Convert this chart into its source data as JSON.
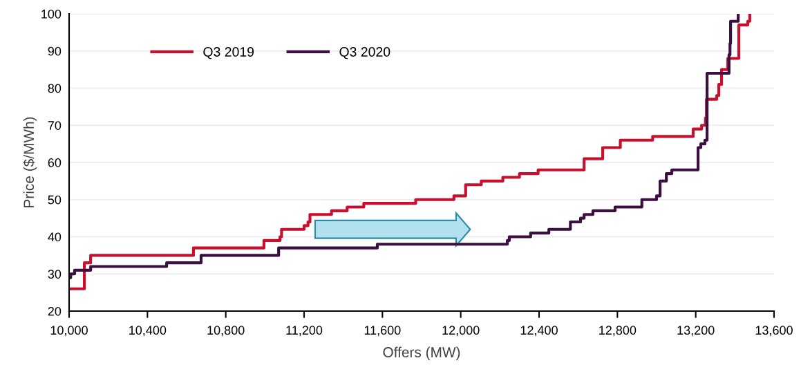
{
  "chart_data": {
    "type": "step",
    "xlabel": "Offers (MW)",
    "ylabel": "Price ($/MWh)",
    "xlim": [
      10000,
      13600
    ],
    "ylim": [
      20,
      100
    ],
    "xticks": [
      {
        "value": 10000,
        "label": "10,000"
      },
      {
        "value": 10400,
        "label": "10,400"
      },
      {
        "value": 10800,
        "label": "10,800"
      },
      {
        "value": 11200,
        "label": "11,200"
      },
      {
        "value": 11600,
        "label": "11,600"
      },
      {
        "value": 12000,
        "label": "12,000"
      },
      {
        "value": 12400,
        "label": "12,400"
      },
      {
        "value": 12800,
        "label": "12,800"
      },
      {
        "value": 13200,
        "label": "13,200"
      },
      {
        "value": 13600,
        "label": "13,600"
      }
    ],
    "yticks": [
      20,
      30,
      40,
      50,
      60,
      70,
      80,
      90,
      100
    ],
    "grid": "y",
    "legend": "top left",
    "series": [
      {
        "name": "Q3 2019",
        "color": "#c8102e",
        "x": [
          10000,
          10078,
          10110,
          10635,
          10995,
          11077,
          11085,
          11200,
          11220,
          11230,
          11340,
          11420,
          11505,
          11770,
          11965,
          12025,
          12105,
          12215,
          12300,
          12395,
          12630,
          12725,
          12815,
          12980,
          13187,
          13230,
          13250,
          13255,
          13307,
          13318,
          13332,
          13364,
          13420,
          13466,
          13476
        ],
        "values": [
          26,
          33,
          35,
          37,
          39,
          40,
          42,
          43,
          44,
          46,
          47,
          48,
          49,
          50,
          51,
          54,
          55,
          56,
          57,
          58,
          61,
          64,
          66,
          67,
          69,
          70,
          72,
          77,
          78,
          81,
          85,
          88,
          97,
          98,
          100
        ]
      },
      {
        "name": "Q3 2020",
        "color": "#3b0f3f",
        "x": [
          10000,
          10008,
          10028,
          10110,
          10498,
          10674,
          11070,
          11574,
          12238,
          12248,
          12357,
          12450,
          12560,
          12612,
          12630,
          12675,
          12788,
          12925,
          13000,
          13018,
          13050,
          13078,
          13212,
          13226,
          13247,
          13258,
          13370,
          13375,
          13378,
          13417
        ],
        "values": [
          29,
          30,
          31,
          32,
          33,
          35,
          37,
          38,
          39,
          40,
          41,
          42,
          44,
          45,
          46,
          47,
          48,
          50,
          51,
          55,
          57,
          58,
          64,
          65,
          66,
          84,
          89,
          92,
          98,
          100
        ]
      }
    ]
  }
}
